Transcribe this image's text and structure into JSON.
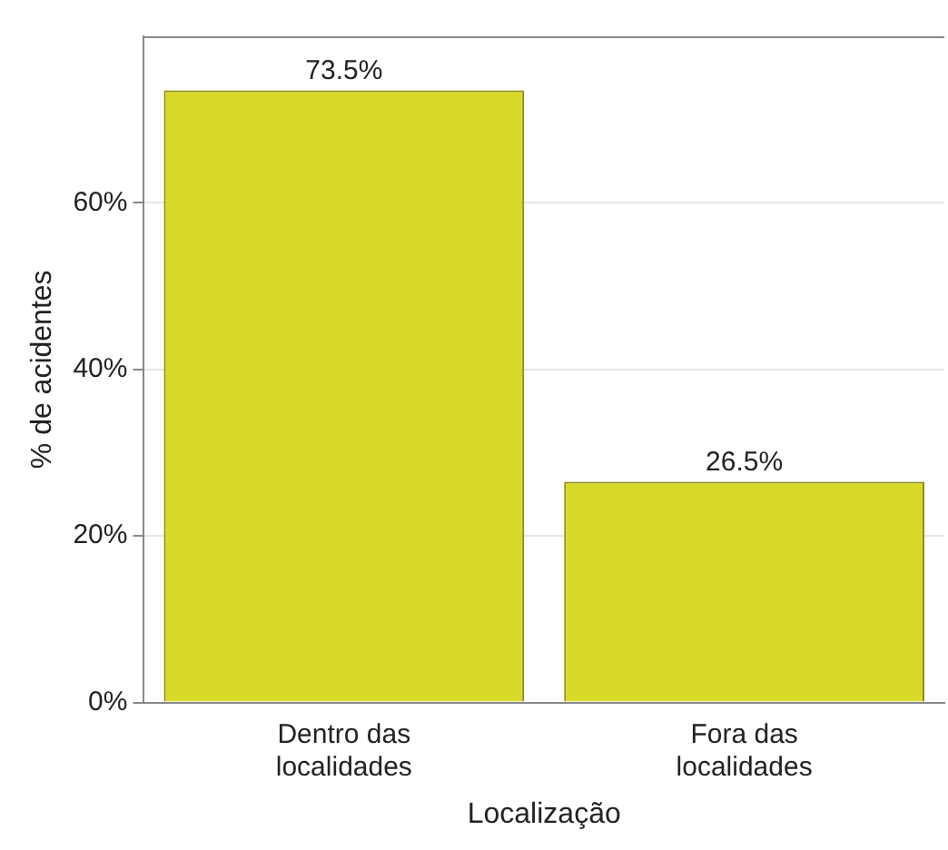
{
  "chart_data": {
    "type": "bar",
    "xlabel": "Localização",
    "ylabel": "% de acidentes",
    "categories": [
      "Dentro das localidades",
      "Fora das localidades"
    ],
    "values": [
      73.5,
      26.5
    ],
    "color": "#d9d92a",
    "value_labels": [
      "73.5%",
      "26.5%"
    ],
    "ylim": [
      0,
      80
    ],
    "yticks": [
      {
        "value": 0,
        "label": "0%"
      },
      {
        "value": 20,
        "label": "20%"
      },
      {
        "value": 40,
        "label": "40%"
      },
      {
        "value": 60,
        "label": "60%"
      }
    ],
    "grid": "y",
    "legend": false
  }
}
